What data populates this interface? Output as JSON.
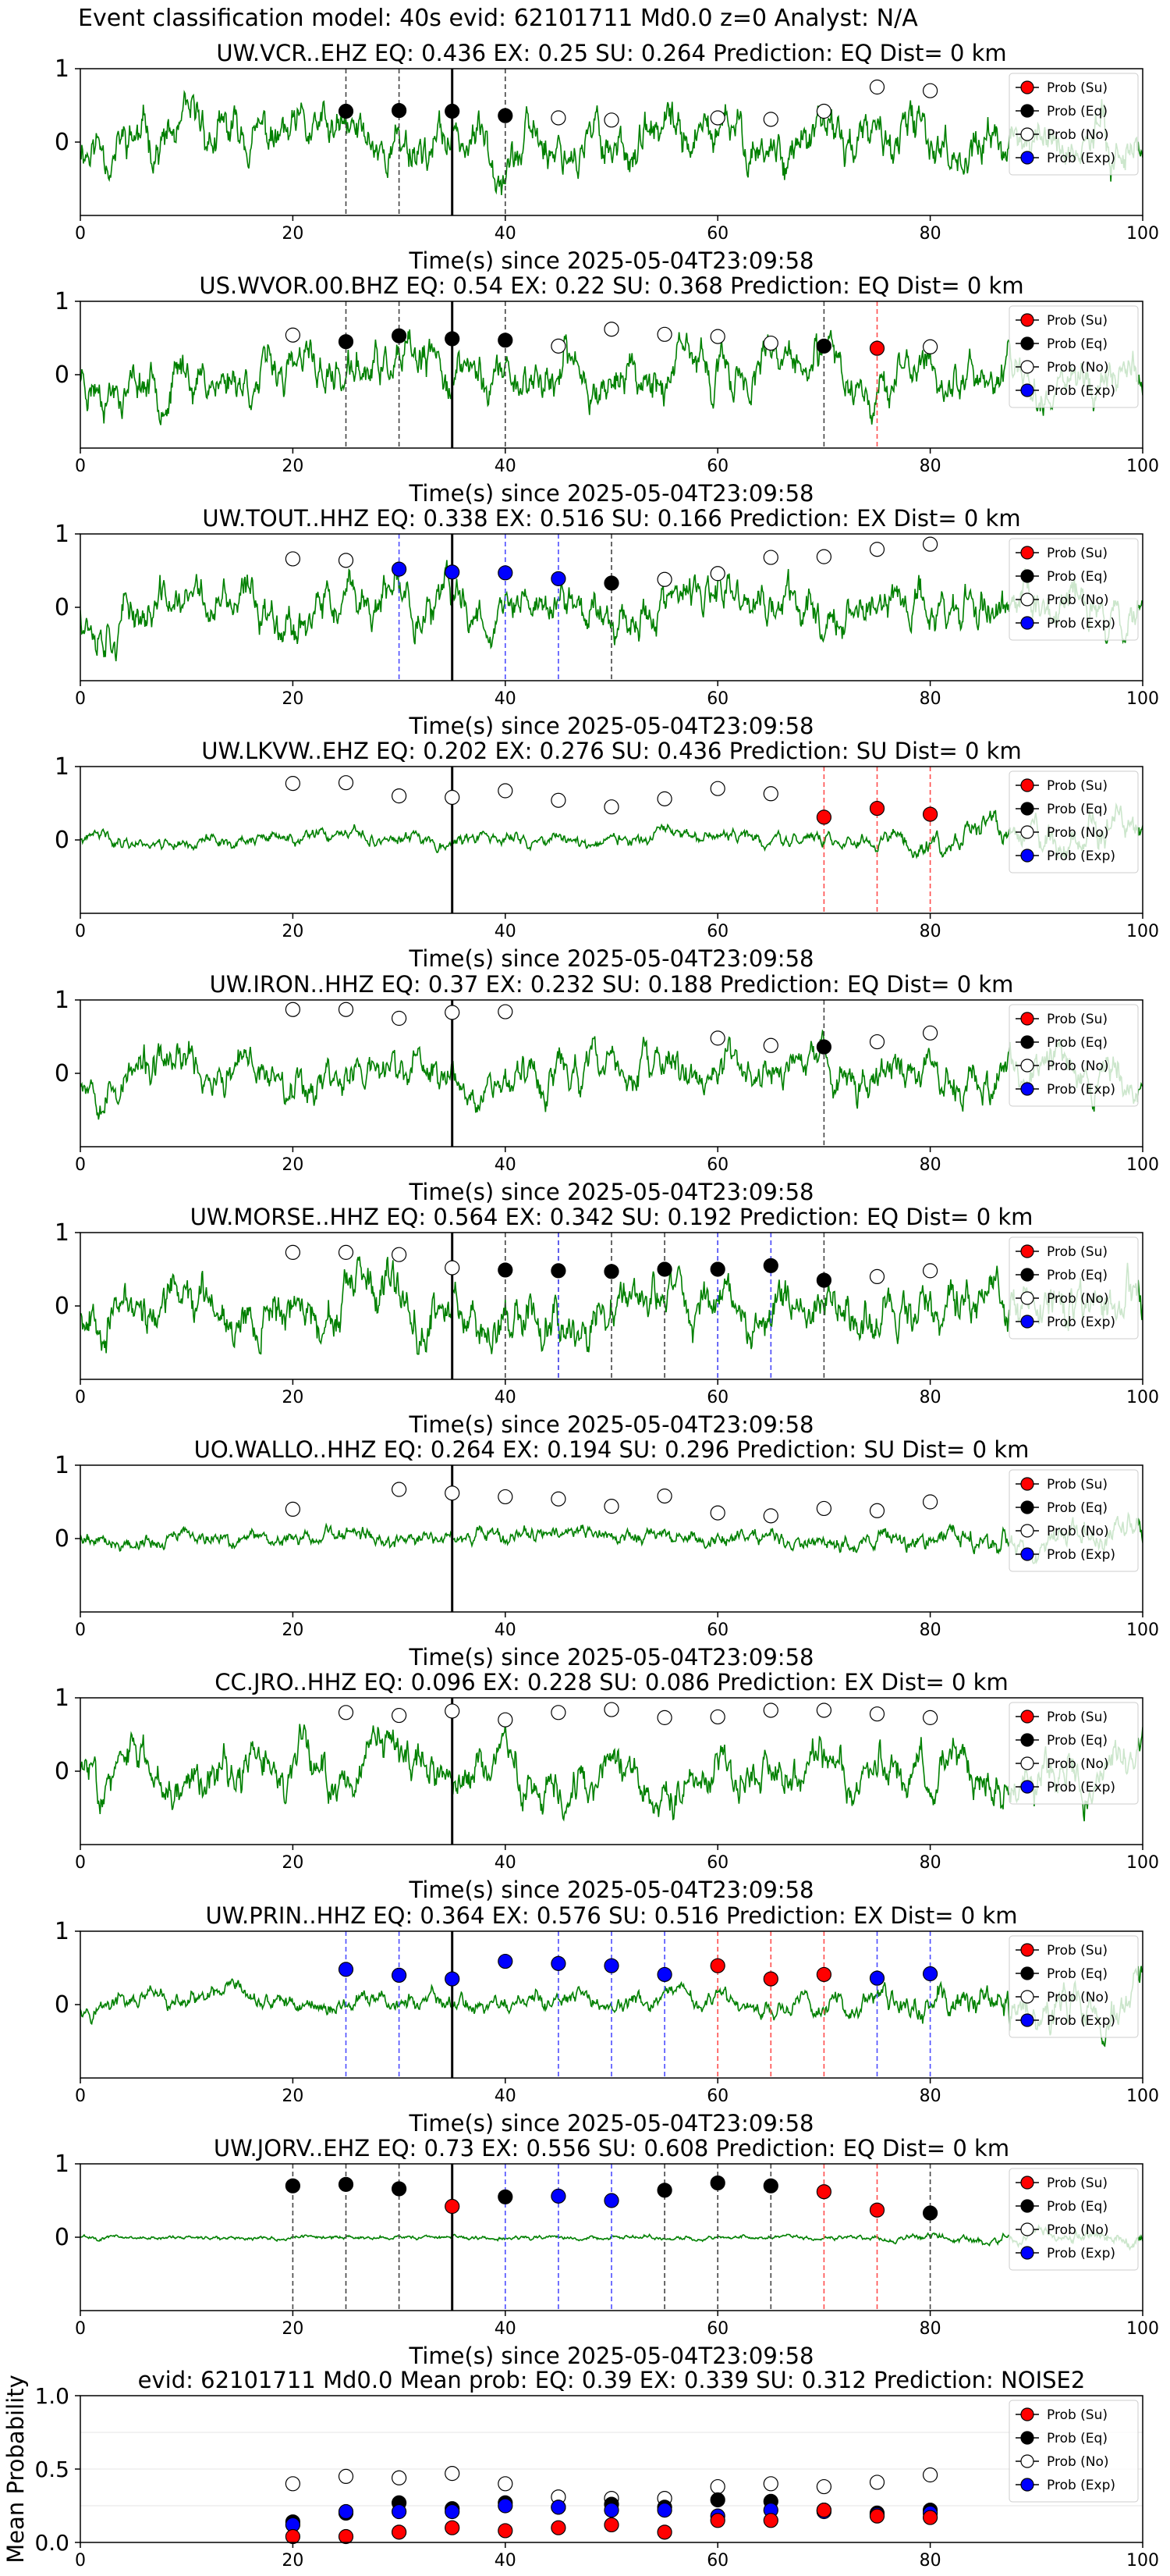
{
  "figure": {
    "suptitle": "Event classification model: 40s evid: 62101711 Md0.0 z=0 Analyst: N/A",
    "legend_labels": [
      "Prob (Su)",
      "Prob (Eq)",
      "Prob (No)",
      "Prob (Exp)"
    ],
    "colors": {
      "Su": "#ff0000",
      "Eq": "#000000",
      "No": "#ffffff",
      "Exp": "#0000ff",
      "wave": "#008000",
      "pick": "#000000"
    }
  },
  "chart_data": [
    {
      "type": "line",
      "title": "UW.VCR..EHZ   EQ: 0.436  EX: 0.25  SU: 0.264   Prediction: EQ    Dist= 0 km",
      "xlabel": "Time(s) since 2025-05-04T23:09:58",
      "ylabel": "",
      "xlim": [
        0,
        100
      ],
      "ylim": [
        -1,
        1
      ],
      "xticks": [
        0,
        20,
        40,
        60,
        80,
        100
      ],
      "yticks": [
        0,
        1
      ],
      "pick_time": 35,
      "wave_seed": 11,
      "wave_amp": 0.9,
      "wave_trend": 0,
      "points": {
        "Eq": [
          [
            25,
            0.42
          ],
          [
            30,
            0.43
          ],
          [
            35,
            0.42
          ],
          [
            40,
            0.36
          ]
        ],
        "No": [
          [
            45,
            0.33
          ],
          [
            50,
            0.3
          ],
          [
            60,
            0.33
          ],
          [
            65,
            0.31
          ],
          [
            70,
            0.42
          ],
          [
            75,
            0.75
          ],
          [
            80,
            0.7
          ]
        ],
        "Su": [],
        "Exp": []
      },
      "vlines": {
        "Eq": [
          25,
          30,
          40
        ],
        "Su": [],
        "Exp": []
      }
    },
    {
      "type": "line",
      "title": "US.WVOR.00.BHZ   EQ: 0.54  EX: 0.22  SU: 0.368   Prediction: EQ    Dist= 0 km",
      "xlabel": "Time(s) since 2025-05-04T23:09:58",
      "ylabel": "",
      "xlim": [
        0,
        100
      ],
      "ylim": [
        -1,
        1
      ],
      "xticks": [
        0,
        20,
        40,
        60,
        80,
        100
      ],
      "yticks": [
        0,
        1
      ],
      "pick_time": 35,
      "wave_seed": 23,
      "wave_amp": 0.85,
      "wave_trend": 0,
      "points": {
        "Eq": [
          [
            25,
            0.45
          ],
          [
            30,
            0.53
          ],
          [
            35,
            0.49
          ],
          [
            40,
            0.47
          ],
          [
            70,
            0.39
          ]
        ],
        "No": [
          [
            20,
            0.54
          ],
          [
            45,
            0.39
          ],
          [
            50,
            0.62
          ],
          [
            55,
            0.55
          ],
          [
            60,
            0.52
          ],
          [
            65,
            0.43
          ],
          [
            80,
            0.38
          ]
        ],
        "Su": [
          [
            75,
            0.36
          ]
        ],
        "Exp": []
      },
      "vlines": {
        "Eq": [
          25,
          30,
          40,
          70
        ],
        "Su": [
          75
        ],
        "Exp": []
      }
    },
    {
      "type": "line",
      "title": "UW.TOUT..HHZ   EQ: 0.338  EX: 0.516  SU: 0.166   Prediction: EX    Dist= 0 km",
      "xlabel": "Time(s) since 2025-05-04T23:09:58",
      "ylabel": "",
      "xlim": [
        0,
        100
      ],
      "ylim": [
        -1,
        1
      ],
      "xticks": [
        0,
        20,
        40,
        60,
        80,
        100
      ],
      "yticks": [
        0,
        1
      ],
      "pick_time": 35,
      "wave_seed": 37,
      "wave_amp": 0.85,
      "wave_trend": 0,
      "points": {
        "Eq": [
          [
            50,
            0.33
          ]
        ],
        "No": [
          [
            20,
            0.66
          ],
          [
            25,
            0.64
          ],
          [
            55,
            0.38
          ],
          [
            60,
            0.46
          ],
          [
            65,
            0.68
          ],
          [
            70,
            0.69
          ],
          [
            75,
            0.79
          ],
          [
            80,
            0.86
          ]
        ],
        "Su": [],
        "Exp": [
          [
            30,
            0.52
          ],
          [
            35,
            0.48
          ],
          [
            40,
            0.47
          ],
          [
            45,
            0.39
          ]
        ]
      },
      "vlines": {
        "Eq": [
          50
        ],
        "Su": [],
        "Exp": [
          30,
          40,
          45
        ]
      }
    },
    {
      "type": "line",
      "title": "UW.LKVW..EHZ   EQ: 0.202  EX: 0.276  SU: 0.436   Prediction: SU    Dist= 0 km",
      "xlabel": "Time(s) since 2025-05-04T23:09:58",
      "ylabel": "",
      "xlim": [
        0,
        100
      ],
      "ylim": [
        -1,
        1
      ],
      "xticks": [
        0,
        20,
        40,
        60,
        80,
        100
      ],
      "yticks": [
        0,
        1
      ],
      "pick_time": 35,
      "wave_seed": 41,
      "wave_amp": 0.25,
      "wave_trend": 0.9,
      "points": {
        "Eq": [],
        "No": [
          [
            20,
            0.77
          ],
          [
            25,
            0.78
          ],
          [
            30,
            0.6
          ],
          [
            35,
            0.58
          ],
          [
            40,
            0.67
          ],
          [
            45,
            0.54
          ],
          [
            50,
            0.45
          ],
          [
            55,
            0.56
          ],
          [
            60,
            0.7
          ],
          [
            65,
            0.63
          ]
        ],
        "Su": [
          [
            70,
            0.31
          ],
          [
            75,
            0.43
          ],
          [
            80,
            0.35
          ]
        ],
        "Exp": []
      },
      "vlines": {
        "Eq": [],
        "Su": [
          70,
          75,
          80
        ],
        "Exp": []
      }
    },
    {
      "type": "line",
      "title": "UW.IRON..HHZ   EQ: 0.37  EX: 0.232  SU: 0.188   Prediction: EQ    Dist= 0 km",
      "xlabel": "Time(s) since 2025-05-04T23:09:58",
      "ylabel": "",
      "xlim": [
        0,
        100
      ],
      "ylim": [
        -1,
        1
      ],
      "xticks": [
        0,
        20,
        40,
        60,
        80,
        100
      ],
      "yticks": [
        0,
        1
      ],
      "pick_time": 35,
      "wave_seed": 53,
      "wave_amp": 0.75,
      "wave_trend": 0,
      "points": {
        "Eq": [
          [
            70,
            0.36
          ]
        ],
        "No": [
          [
            20,
            0.87
          ],
          [
            25,
            0.87
          ],
          [
            30,
            0.75
          ],
          [
            35,
            0.83
          ],
          [
            40,
            0.84
          ],
          [
            60,
            0.48
          ],
          [
            65,
            0.38
          ],
          [
            75,
            0.43
          ],
          [
            80,
            0.55
          ]
        ],
        "Su": [],
        "Exp": []
      },
      "vlines": {
        "Eq": [
          70
        ],
        "Su": [],
        "Exp": []
      }
    },
    {
      "type": "line",
      "title": "UW.MORSE..HHZ   EQ: 0.564  EX: 0.342  SU: 0.192   Prediction: EQ    Dist= 0 km",
      "xlabel": "Time(s) since 2025-05-04T23:09:58",
      "ylabel": "",
      "xlim": [
        0,
        100
      ],
      "ylim": [
        -1,
        1
      ],
      "xticks": [
        0,
        20,
        40,
        60,
        80,
        100
      ],
      "yticks": [
        0,
        1
      ],
      "pick_time": 35,
      "wave_seed": 67,
      "wave_amp": 0.9,
      "wave_trend": 0,
      "points": {
        "Eq": [
          [
            40,
            0.49
          ],
          [
            45,
            0.48
          ],
          [
            50,
            0.47
          ],
          [
            55,
            0.5
          ],
          [
            60,
            0.5
          ],
          [
            65,
            0.55
          ],
          [
            70,
            0.35
          ]
        ],
        "No": [
          [
            20,
            0.73
          ],
          [
            25,
            0.73
          ],
          [
            30,
            0.7
          ],
          [
            35,
            0.52
          ],
          [
            75,
            0.4
          ],
          [
            80,
            0.48
          ]
        ],
        "Su": [],
        "Exp": []
      },
      "vlines": {
        "Eq": [
          40,
          45,
          50,
          55,
          60,
          65,
          70
        ],
        "Su": [],
        "Exp": [
          45,
          60,
          65
        ]
      }
    },
    {
      "type": "line",
      "title": "UO.WALLO..HHZ   EQ: 0.264  EX: 0.194  SU: 0.296   Prediction: SU    Dist= 0 km",
      "xlabel": "Time(s) since 2025-05-04T23:09:58",
      "ylabel": "",
      "xlim": [
        0,
        100
      ],
      "ylim": [
        -1,
        1
      ],
      "xticks": [
        0,
        20,
        40,
        60,
        80,
        100
      ],
      "yticks": [
        0,
        1
      ],
      "pick_time": 35,
      "wave_seed": 79,
      "wave_amp": 0.3,
      "wave_trend": 0.4,
      "points": {
        "Eq": [],
        "No": [
          [
            20,
            0.4
          ],
          [
            30,
            0.67
          ],
          [
            35,
            0.62
          ],
          [
            40,
            0.57
          ],
          [
            45,
            0.54
          ],
          [
            50,
            0.44
          ],
          [
            55,
            0.58
          ],
          [
            60,
            0.35
          ],
          [
            65,
            0.31
          ],
          [
            70,
            0.41
          ],
          [
            75,
            0.38
          ],
          [
            80,
            0.5
          ]
        ],
        "Su": [],
        "Exp": []
      },
      "vlines": {
        "Eq": [],
        "Su": [],
        "Exp": []
      }
    },
    {
      "type": "line",
      "title": "CC.JRO..HHZ   EQ: 0.096  EX: 0.228  SU: 0.086   Prediction: EX    Dist= 0 km",
      "xlabel": "Time(s) since 2025-05-04T23:09:58",
      "ylabel": "",
      "xlim": [
        0,
        100
      ],
      "ylim": [
        -1,
        1
      ],
      "xticks": [
        0,
        20,
        40,
        60,
        80,
        100
      ],
      "yticks": [
        0,
        1
      ],
      "pick_time": 35,
      "wave_seed": 83,
      "wave_amp": 0.85,
      "wave_trend": 0,
      "points": {
        "Eq": [],
        "No": [
          [
            25,
            0.8
          ],
          [
            30,
            0.76
          ],
          [
            35,
            0.82
          ],
          [
            40,
            0.7
          ],
          [
            45,
            0.8
          ],
          [
            50,
            0.84
          ],
          [
            55,
            0.73
          ],
          [
            60,
            0.74
          ],
          [
            65,
            0.83
          ],
          [
            70,
            0.83
          ],
          [
            75,
            0.78
          ],
          [
            80,
            0.73
          ]
        ],
        "Su": [],
        "Exp": []
      },
      "vlines": {
        "Eq": [],
        "Su": [],
        "Exp": []
      }
    },
    {
      "type": "line",
      "title": "UW.PRIN..HHZ   EQ: 0.364  EX: 0.576  SU: 0.516   Prediction: EX    Dist= 0 km",
      "xlabel": "Time(s) since 2025-05-04T23:09:58",
      "ylabel": "",
      "xlim": [
        0,
        100
      ],
      "ylim": [
        -1,
        1
      ],
      "xticks": [
        0,
        20,
        40,
        60,
        80,
        100
      ],
      "yticks": [
        0,
        1
      ],
      "pick_time": 35,
      "wave_seed": 97,
      "wave_amp": 0.35,
      "wave_trend": 0.8,
      "points": {
        "Eq": [],
        "No": [],
        "Su": [
          [
            60,
            0.53
          ],
          [
            65,
            0.35
          ],
          [
            70,
            0.41
          ]
        ],
        "Exp": [
          [
            25,
            0.48
          ],
          [
            30,
            0.4
          ],
          [
            35,
            0.35
          ],
          [
            40,
            0.59
          ],
          [
            45,
            0.56
          ],
          [
            50,
            0.53
          ],
          [
            55,
            0.41
          ],
          [
            75,
            0.36
          ],
          [
            80,
            0.42
          ]
        ]
      },
      "vlines": {
        "Eq": [],
        "Su": [
          60,
          65,
          70
        ],
        "Exp": [
          25,
          30,
          45,
          50,
          55,
          75,
          80
        ]
      }
    },
    {
      "type": "line",
      "title": "UW.JORV..EHZ   EQ: 0.73  EX: 0.556  SU: 0.608   Prediction: EQ    Dist= 0 km",
      "xlabel": "Time(s) since 2025-05-04T23:09:58",
      "ylabel": "",
      "xlim": [
        0,
        100
      ],
      "ylim": [
        -1,
        1
      ],
      "xticks": [
        0,
        20,
        40,
        60,
        80,
        100
      ],
      "yticks": [
        0,
        1
      ],
      "pick_time": 35,
      "wave_seed": 101,
      "wave_amp": 0.08,
      "wave_trend": 1.0,
      "points": {
        "Eq": [
          [
            20,
            0.7
          ],
          [
            25,
            0.72
          ],
          [
            30,
            0.66
          ],
          [
            40,
            0.55
          ],
          [
            55,
            0.64
          ],
          [
            60,
            0.74
          ],
          [
            65,
            0.7
          ],
          [
            80,
            0.33
          ]
        ],
        "No": [],
        "Su": [
          [
            35,
            0.42
          ],
          [
            70,
            0.62
          ],
          [
            75,
            0.37
          ]
        ],
        "Exp": [
          [
            45,
            0.56
          ],
          [
            50,
            0.5
          ]
        ]
      },
      "vlines": {
        "Eq": [
          20,
          25,
          30,
          55,
          60,
          65,
          80
        ],
        "Su": [
          70,
          75
        ],
        "Exp": [
          40,
          45,
          50
        ]
      }
    },
    {
      "type": "scatter",
      "title": "evid: 62101711  Md0.0   Mean prob:   EQ: 0.39  EX: 0.339  SU: 0.312   Prediction: NOISE2",
      "xlabel": "",
      "ylabel": "Mean Probability",
      "xlim": [
        0,
        100
      ],
      "ylim": [
        0,
        1
      ],
      "xticks": [
        0,
        20,
        40,
        60,
        80,
        100
      ],
      "yticks": [
        0.0,
        0.5,
        1.0
      ],
      "points": {
        "No": [
          [
            20,
            0.4
          ],
          [
            25,
            0.45
          ],
          [
            30,
            0.44
          ],
          [
            35,
            0.47
          ],
          [
            40,
            0.4
          ],
          [
            45,
            0.31
          ],
          [
            50,
            0.3
          ],
          [
            55,
            0.3
          ],
          [
            60,
            0.38
          ],
          [
            65,
            0.4
          ],
          [
            70,
            0.38
          ],
          [
            75,
            0.41
          ],
          [
            80,
            0.46
          ]
        ],
        "Eq": [
          [
            20,
            0.14
          ],
          [
            25,
            0.2
          ],
          [
            30,
            0.27
          ],
          [
            35,
            0.23
          ],
          [
            40,
            0.27
          ],
          [
            45,
            0.24
          ],
          [
            50,
            0.26
          ],
          [
            55,
            0.24
          ],
          [
            60,
            0.29
          ],
          [
            65,
            0.28
          ],
          [
            70,
            0.22
          ],
          [
            75,
            0.2
          ],
          [
            80,
            0.22
          ]
        ],
        "Exp": [
          [
            20,
            0.12
          ],
          [
            25,
            0.21
          ],
          [
            30,
            0.21
          ],
          [
            35,
            0.21
          ],
          [
            40,
            0.25
          ],
          [
            45,
            0.24
          ],
          [
            50,
            0.22
          ],
          [
            55,
            0.22
          ],
          [
            60,
            0.18
          ],
          [
            65,
            0.22
          ],
          [
            70,
            0.21
          ],
          [
            75,
            0.19
          ],
          [
            80,
            0.2
          ]
        ],
        "Su": [
          [
            20,
            0.04
          ],
          [
            25,
            0.04
          ],
          [
            30,
            0.07
          ],
          [
            35,
            0.1
          ],
          [
            40,
            0.08
          ],
          [
            45,
            0.1
          ],
          [
            50,
            0.12
          ],
          [
            55,
            0.07
          ],
          [
            60,
            0.15
          ],
          [
            65,
            0.15
          ],
          [
            70,
            0.22
          ],
          [
            75,
            0.18
          ],
          [
            80,
            0.17
          ]
        ]
      }
    }
  ]
}
